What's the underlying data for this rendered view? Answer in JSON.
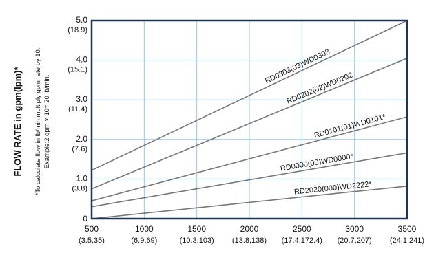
{
  "chart_data": {
    "type": "line",
    "title": "",
    "ylabel": "FLOW RATE in gpm(lpm)*",
    "footnote_lines": [
      "*To calculate flow in lb/min,multiply gpm rate by 10.",
      "Example:2 gpm × 10= 20 lb/min."
    ],
    "xlim": [
      500,
      3500
    ],
    "ylim": [
      0,
      5.0
    ],
    "grid": true,
    "x_ticks": [
      {
        "value": 500,
        "label": "500",
        "sublabel": "(3.5,35)"
      },
      {
        "value": 1000,
        "label": "1000",
        "sublabel": "(6.9,69)"
      },
      {
        "value": 1500,
        "label": "1500",
        "sublabel": "(10.3,103)"
      },
      {
        "value": 2000,
        "label": "2000",
        "sublabel": "(13.8,138)"
      },
      {
        "value": 2500,
        "label": "2500",
        "sublabel": "(17.4,172.4)"
      },
      {
        "value": 3000,
        "label": "3000",
        "sublabel": "(20.7,207)"
      },
      {
        "value": 3500,
        "label": "3500",
        "sublabel": "(24.1,241)"
      }
    ],
    "y_ticks": [
      {
        "value": 0,
        "label": "0",
        "sublabel": ""
      },
      {
        "value": 1.0,
        "label": "1.0",
        "sublabel": "(3.8)"
      },
      {
        "value": 2.0,
        "label": "2.0",
        "sublabel": "(7.6)"
      },
      {
        "value": 3.0,
        "label": "3.0",
        "sublabel": "(11.4)"
      },
      {
        "value": 4.0,
        "label": "4.0",
        "sublabel": "(15.1)"
      },
      {
        "value": 5.0,
        "label": "5.0",
        "sublabel": "(18.9)"
      }
    ],
    "series": [
      {
        "name": "RD0303(03)WD0303",
        "x": [
          500,
          3500
        ],
        "y": [
          1.22,
          5.0
        ],
        "label_x": 2480
      },
      {
        "name": "RD0202(02)WD0202",
        "x": [
          500,
          3500
        ],
        "y": [
          0.75,
          4.05
        ],
        "label_x": 2690
      },
      {
        "name": "RD0101(01)WD0101*",
        "x": [
          500,
          3500
        ],
        "y": [
          0.45,
          2.57
        ],
        "label_x": 2970
      },
      {
        "name": "RD0000(00)WD0000*",
        "x": [
          500,
          3500
        ],
        "y": [
          0.3,
          1.66
        ],
        "label_x": 2650
      },
      {
        "name": "RD2020(000)WD2222*",
        "x": [
          500,
          3500
        ],
        "y": [
          0.0,
          0.82
        ],
        "label_x": 2800
      }
    ],
    "colors": {
      "frame": "#1e3557",
      "grid": "#8ec8ea",
      "line": "#777777"
    }
  }
}
